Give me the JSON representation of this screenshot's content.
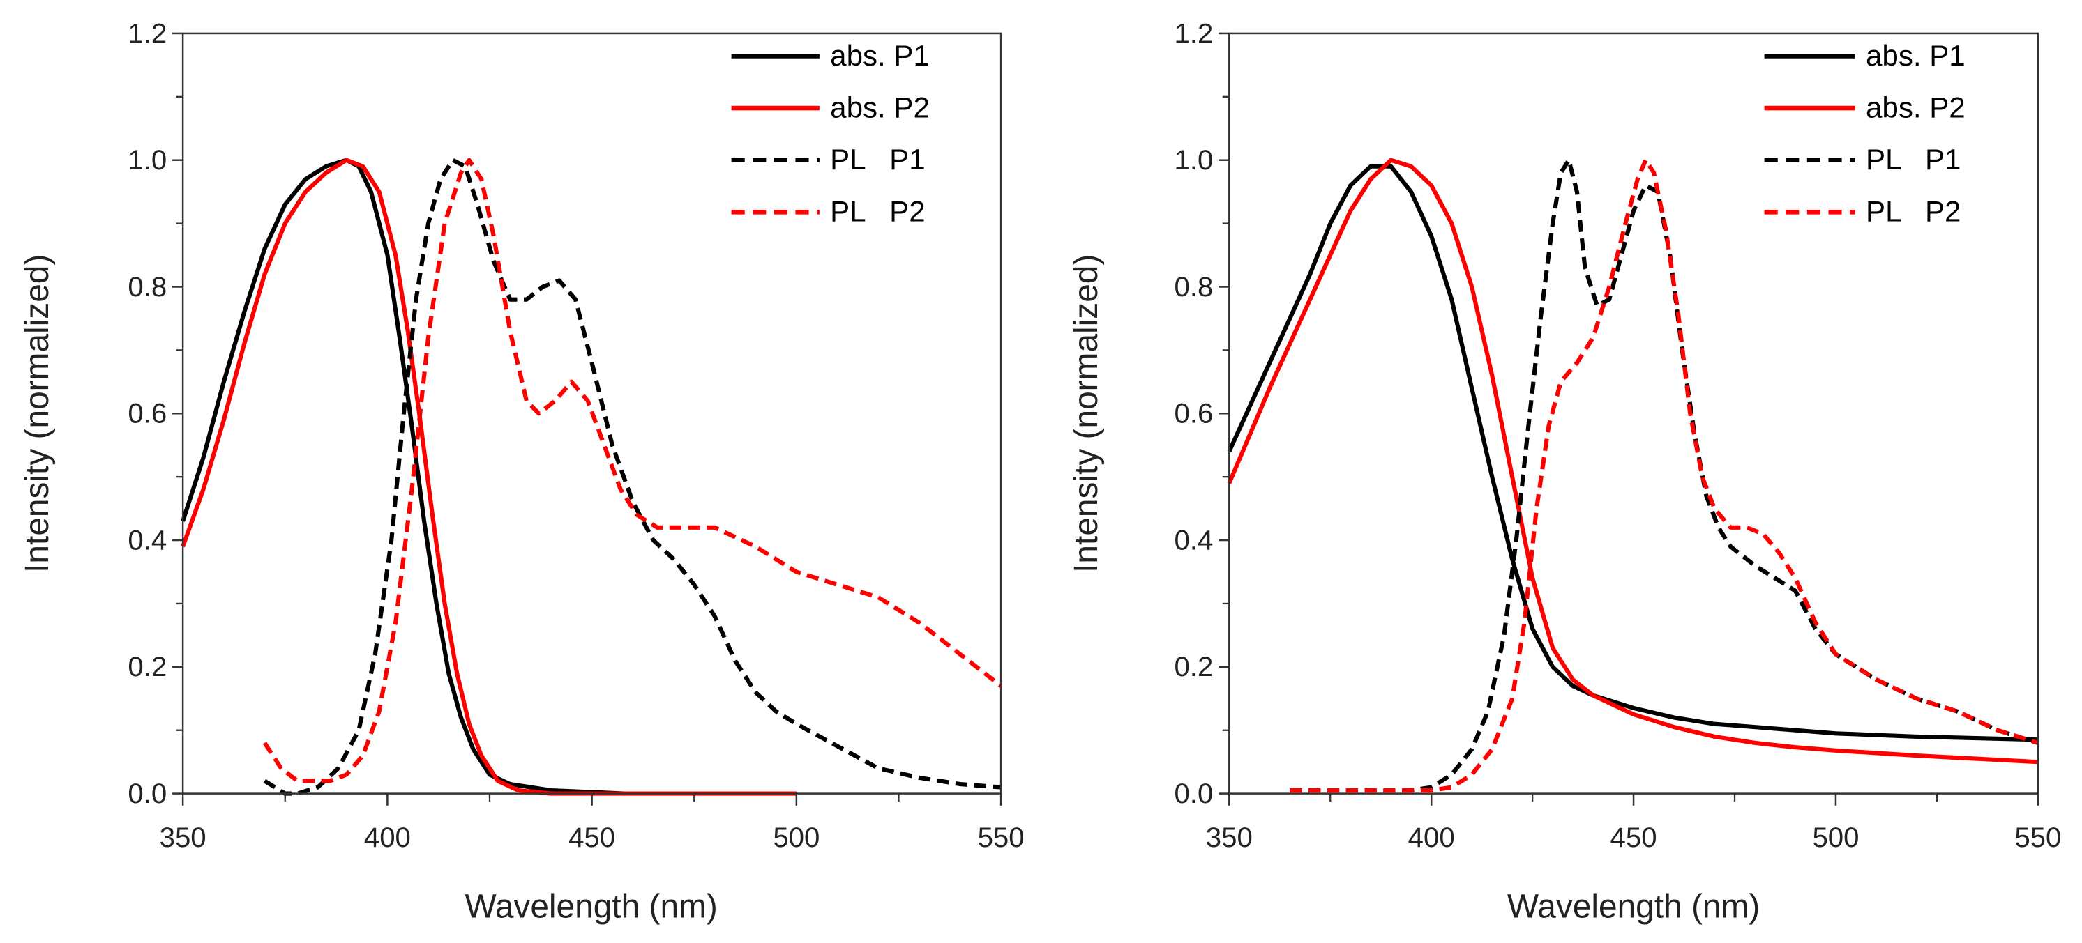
{
  "chart_data": [
    {
      "type": "line",
      "xlabel": "Wavelength (nm)",
      "ylabel": "Intensity (normalized)",
      "xlim": [
        350,
        550
      ],
      "ylim": [
        0,
        1.2
      ],
      "xticks": [
        350,
        400,
        450,
        500,
        550
      ],
      "yticks": [
        "0.0",
        "0.2",
        "0.4",
        "0.6",
        "0.8",
        "1.0",
        "1.2"
      ],
      "grid": false,
      "legend_position": "top-right",
      "series": [
        {
          "name": "abs. P1",
          "color": "#000000",
          "dashed": false,
          "x": [
            350,
            355,
            360,
            365,
            370,
            375,
            380,
            385,
            390,
            393,
            396,
            400,
            403,
            406,
            409,
            412,
            415,
            418,
            421,
            425,
            430,
            440,
            458
          ],
          "y": [
            0.43,
            0.53,
            0.65,
            0.76,
            0.86,
            0.93,
            0.97,
            0.99,
            1.0,
            0.99,
            0.95,
            0.85,
            0.72,
            0.58,
            0.43,
            0.3,
            0.19,
            0.12,
            0.07,
            0.03,
            0.015,
            0.005,
            0.0
          ]
        },
        {
          "name": "abs. P2",
          "color": "#ff0000",
          "dashed": false,
          "x": [
            350,
            355,
            360,
            365,
            370,
            375,
            380,
            385,
            390,
            394,
            398,
            402,
            405,
            408,
            411,
            414,
            417,
            420,
            423,
            427,
            432,
            440,
            500
          ],
          "y": [
            0.39,
            0.48,
            0.59,
            0.71,
            0.82,
            0.9,
            0.95,
            0.98,
            1.0,
            0.99,
            0.95,
            0.85,
            0.73,
            0.59,
            0.44,
            0.3,
            0.19,
            0.11,
            0.06,
            0.02,
            0.005,
            0.0,
            0.0
          ]
        },
        {
          "name": "PL   P1",
          "color": "#000000",
          "dashed": true,
          "x": [
            370,
            375,
            378,
            383,
            388,
            393,
            397,
            401,
            404,
            407,
            410,
            413,
            416,
            419,
            422,
            426,
            430,
            434,
            438,
            442,
            446,
            450,
            455,
            460,
            465,
            470,
            475,
            480,
            485,
            490,
            495,
            500,
            510,
            520,
            530,
            540,
            550
          ],
          "y": [
            0.02,
            0.0,
            0.0,
            0.01,
            0.04,
            0.1,
            0.22,
            0.4,
            0.6,
            0.78,
            0.9,
            0.97,
            1.0,
            0.99,
            0.93,
            0.84,
            0.78,
            0.78,
            0.8,
            0.81,
            0.78,
            0.68,
            0.55,
            0.46,
            0.4,
            0.37,
            0.33,
            0.28,
            0.21,
            0.16,
            0.13,
            0.11,
            0.075,
            0.04,
            0.025,
            0.015,
            0.01
          ]
        },
        {
          "name": "PL   P2",
          "color": "#ff0000",
          "dashed": true,
          "x": [
            370,
            374,
            378,
            382,
            386,
            390,
            394,
            398,
            402,
            406,
            410,
            414,
            418,
            420,
            423,
            426,
            430,
            434,
            437,
            441,
            445,
            449,
            453,
            457,
            461,
            466,
            470,
            480,
            490,
            500,
            510,
            520,
            530,
            540,
            550
          ],
          "y": [
            0.08,
            0.04,
            0.02,
            0.02,
            0.02,
            0.03,
            0.06,
            0.13,
            0.27,
            0.48,
            0.72,
            0.9,
            0.98,
            1.0,
            0.97,
            0.88,
            0.73,
            0.62,
            0.6,
            0.62,
            0.65,
            0.62,
            0.55,
            0.48,
            0.44,
            0.42,
            0.42,
            0.42,
            0.39,
            0.35,
            0.33,
            0.31,
            0.27,
            0.22,
            0.17
          ]
        }
      ]
    },
    {
      "type": "line",
      "xlabel": "Wavelength (nm)",
      "ylabel": "Intensity (normalized)",
      "xlim": [
        350,
        550
      ],
      "ylim": [
        0,
        1.2
      ],
      "xticks": [
        350,
        400,
        450,
        500,
        550
      ],
      "yticks": [
        "0.0",
        "0.2",
        "0.4",
        "0.6",
        "0.8",
        "1.0",
        "1.2"
      ],
      "grid": false,
      "legend_position": "top-right",
      "series": [
        {
          "name": "abs. P1",
          "color": "#000000",
          "dashed": false,
          "x": [
            350,
            360,
            370,
            375,
            380,
            385,
            390,
            395,
            400,
            405,
            410,
            415,
            420,
            425,
            430,
            435,
            440,
            450,
            460,
            470,
            480,
            490,
            500,
            520,
            550
          ],
          "y": [
            0.54,
            0.68,
            0.82,
            0.9,
            0.96,
            0.99,
            0.99,
            0.95,
            0.88,
            0.78,
            0.64,
            0.5,
            0.37,
            0.26,
            0.2,
            0.17,
            0.155,
            0.135,
            0.12,
            0.11,
            0.105,
            0.1,
            0.095,
            0.09,
            0.085
          ]
        },
        {
          "name": "abs. P2",
          "color": "#ff0000",
          "dashed": false,
          "x": [
            350,
            360,
            370,
            380,
            385,
            390,
            395,
            400,
            405,
            410,
            415,
            420,
            425,
            430,
            435,
            440,
            450,
            460,
            470,
            480,
            490,
            500,
            520,
            550
          ],
          "y": [
            0.49,
            0.64,
            0.78,
            0.92,
            0.97,
            1.0,
            0.99,
            0.96,
            0.9,
            0.8,
            0.66,
            0.5,
            0.34,
            0.23,
            0.18,
            0.155,
            0.125,
            0.105,
            0.09,
            0.08,
            0.073,
            0.068,
            0.06,
            0.05
          ]
        },
        {
          "name": "PL   P1",
          "color": "#000000",
          "dashed": true,
          "x": [
            365,
            380,
            395,
            400,
            405,
            410,
            414,
            418,
            421,
            424,
            427,
            430,
            432,
            434,
            436,
            438,
            441,
            444,
            447,
            450,
            453,
            456,
            459,
            462,
            465,
            468,
            471,
            474,
            480,
            485,
            490,
            495,
            500,
            510,
            520,
            530,
            540,
            550
          ],
          "y": [
            0.005,
            0.005,
            0.005,
            0.01,
            0.03,
            0.07,
            0.13,
            0.25,
            0.4,
            0.58,
            0.75,
            0.9,
            0.98,
            1.0,
            0.95,
            0.83,
            0.77,
            0.78,
            0.85,
            0.92,
            0.96,
            0.95,
            0.85,
            0.7,
            0.57,
            0.47,
            0.42,
            0.39,
            0.36,
            0.34,
            0.32,
            0.26,
            0.22,
            0.18,
            0.15,
            0.13,
            0.1,
            0.08
          ]
        },
        {
          "name": "PL   P2",
          "color": "#ff0000",
          "dashed": true,
          "x": [
            365,
            400,
            405,
            410,
            415,
            420,
            423,
            426,
            429,
            432,
            436,
            440,
            444,
            448,
            451,
            453,
            455,
            458,
            461,
            464,
            467,
            470,
            474,
            478,
            482,
            486,
            490,
            495,
            500,
            510,
            520,
            530,
            540,
            550
          ],
          "y": [
            0.005,
            0.005,
            0.01,
            0.03,
            0.07,
            0.15,
            0.27,
            0.45,
            0.58,
            0.65,
            0.68,
            0.72,
            0.8,
            0.9,
            0.97,
            1.0,
            0.98,
            0.89,
            0.76,
            0.6,
            0.5,
            0.45,
            0.42,
            0.42,
            0.41,
            0.38,
            0.34,
            0.27,
            0.22,
            0.18,
            0.15,
            0.13,
            0.1,
            0.08
          ]
        }
      ]
    }
  ]
}
